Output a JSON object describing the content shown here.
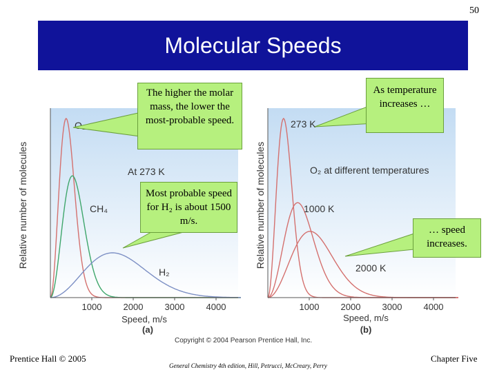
{
  "page_number": "50",
  "title": "Molecular Speeds",
  "callouts": {
    "molar_mass": "The higher the molar mass, the lower the most-probable speed.",
    "h2": "Most probable speed for H₂ is about 1500 m/s.",
    "temperature": "As temperature increases …",
    "speed": "… speed increases."
  },
  "copyright": "Copyright © 2004 Pearson Prentice Hall, Inc.",
  "footer": {
    "left": "Prentice Hall © 2005",
    "center": "General Chemistry 4th edition, Hill, Petrucci, McCreary, Perry",
    "right": "Chapter Five"
  },
  "colors": {
    "banner": "#10139a",
    "callout": "#b6f07e",
    "plot_top": "#c3dcf3",
    "plot_bottom": "#ffffff",
    "o2": "#d4706e",
    "ch4": "#3ea66b",
    "h2": "#7c8fc4"
  },
  "chart_data": [
    {
      "type": "line",
      "panel_label": "(a)",
      "annotation": "At 273 K",
      "xlabel": "Speed, m/s",
      "ylabel": "Relative number of molecules",
      "x_ticks": [
        1000,
        2000,
        3000,
        4000
      ],
      "xlim": [
        0,
        4600
      ],
      "series": [
        {
          "name": "O₂",
          "color_key": "o2",
          "most_probable_speed": 380,
          "peak": 1.0
        },
        {
          "name": "CH₄",
          "color_key": "ch4",
          "most_probable_speed": 530,
          "peak": 0.68
        },
        {
          "name": "H₂",
          "color_key": "h2",
          "most_probable_speed": 1500,
          "peak": 0.25
        }
      ]
    },
    {
      "type": "line",
      "panel_label": "(b)",
      "annotation": "O₂ at different temperatures",
      "xlabel": "Speed, m/s",
      "ylabel": "Relative number of molecules",
      "x_ticks": [
        1000,
        2000,
        3000,
        4000
      ],
      "xlim": [
        0,
        4600
      ],
      "series": [
        {
          "name": "273 K",
          "color_key": "o2",
          "most_probable_speed": 380,
          "peak": 1.0
        },
        {
          "name": "1000 K",
          "color_key": "o2",
          "most_probable_speed": 720,
          "peak": 0.53
        },
        {
          "name": "2000 K",
          "color_key": "o2",
          "most_probable_speed": 1020,
          "peak": 0.37
        }
      ]
    }
  ]
}
